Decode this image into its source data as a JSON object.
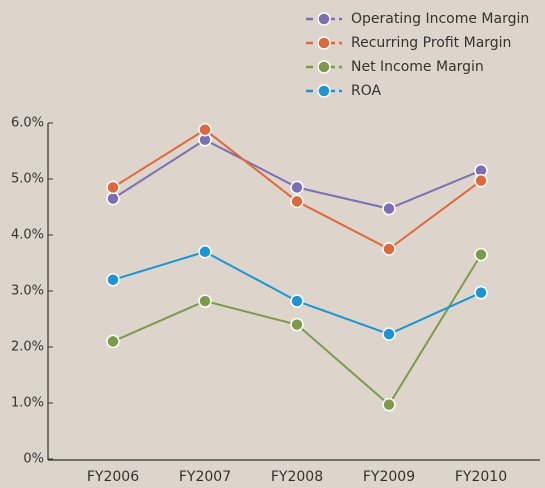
{
  "chart_data": {
    "type": "line",
    "categories": [
      "FY2006",
      "FY2007",
      "FY2008",
      "FY2009",
      "FY2010"
    ],
    "series": [
      {
        "name": "Operating Income Margin",
        "color": "#7b70b3",
        "values": [
          4.65,
          5.7,
          4.85,
          4.47,
          5.15
        ]
      },
      {
        "name": "Recurring Profit Margin",
        "color": "#e0673a",
        "values": [
          4.85,
          5.88,
          4.6,
          3.75,
          4.97
        ]
      },
      {
        "name": "Net Income Margin",
        "color": "#7b9b4b",
        "values": [
          2.1,
          2.82,
          2.4,
          0.97,
          3.65
        ]
      },
      {
        "name": "ROA",
        "color": "#1b95d3",
        "values": [
          3.2,
          3.7,
          2.82,
          2.23,
          2.97
        ]
      }
    ],
    "ylim": [
      0,
      6
    ],
    "yticks": [
      {
        "value": 0,
        "label": "0%"
      },
      {
        "value": 1,
        "label": "1.0%"
      },
      {
        "value": 2,
        "label": "2.0%"
      },
      {
        "value": 3,
        "label": "3.0%"
      },
      {
        "value": 4,
        "label": "4.0%"
      },
      {
        "value": 5,
        "label": "5.0%"
      },
      {
        "value": 6,
        "label": "6.0%"
      }
    ],
    "legend": "top-right",
    "grid": false
  }
}
